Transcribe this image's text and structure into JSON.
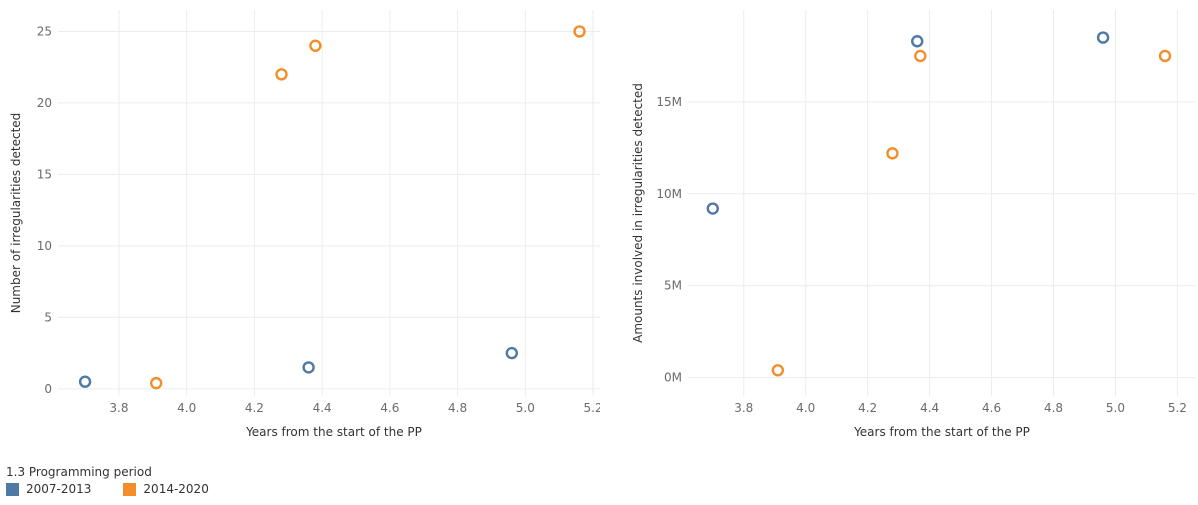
{
  "colors": {
    "2007-2013": "#4e79a7",
    "2014-2020": "#f28e2b"
  },
  "legend": {
    "title": "1.3 Programming period",
    "items": [
      {
        "label": "2007-2013",
        "color": "#4e79a7"
      },
      {
        "label": "2014-2020",
        "color": "#f28e2b"
      }
    ]
  },
  "chart_data": [
    {
      "type": "scatter",
      "xlabel": "Years from the start of the PP",
      "ylabel": "Number of irregularities detected",
      "xlim": [
        3.62,
        5.25
      ],
      "ylim": [
        -0.5,
        26.5
      ],
      "xticks": [
        3.8,
        4.0,
        4.2,
        4.4,
        4.6,
        4.8,
        5.0,
        5.2
      ],
      "xtick_labels": [
        "3.8",
        "4.0",
        "4.2",
        "4.4",
        "4.6",
        "4.8",
        "5.0",
        "5.2"
      ],
      "yticks": [
        0,
        5,
        10,
        15,
        20,
        25
      ],
      "ytick_labels": [
        "0",
        "5",
        "10",
        "15",
        "20",
        "25"
      ],
      "grid": true,
      "series": [
        {
          "name": "2007-2013",
          "x": [
            3.7,
            4.36,
            4.96
          ],
          "y": [
            0.5,
            1.5,
            2.5
          ]
        },
        {
          "name": "2014-2020",
          "x": [
            3.91,
            4.28,
            4.38,
            5.16
          ],
          "y": [
            0.4,
            22,
            24,
            25
          ]
        }
      ]
    },
    {
      "type": "scatter",
      "xlabel": "Years from the start of the PP",
      "ylabel": "Amounts involved in irregularities detected",
      "xlim": [
        3.62,
        5.26
      ],
      "ylim": [
        -1000000,
        20000000
      ],
      "xticks": [
        3.8,
        4.0,
        4.2,
        4.4,
        4.6,
        4.8,
        5.0,
        5.2
      ],
      "xtick_labels": [
        "3.8",
        "4.0",
        "4.2",
        "4.4",
        "4.6",
        "4.8",
        "5.0",
        "5.2"
      ],
      "yticks": [
        0,
        5000000,
        10000000,
        15000000
      ],
      "ytick_labels": [
        "0M",
        "5M",
        "10M",
        "15M"
      ],
      "grid": true,
      "series": [
        {
          "name": "2007-2013",
          "x": [
            3.7,
            4.36,
            4.96
          ],
          "y": [
            9200000,
            18300000,
            18500000
          ]
        },
        {
          "name": "2014-2020",
          "x": [
            3.91,
            4.28,
            4.37,
            5.16
          ],
          "y": [
            400000,
            12200000,
            17500000,
            17500000
          ]
        }
      ]
    }
  ]
}
